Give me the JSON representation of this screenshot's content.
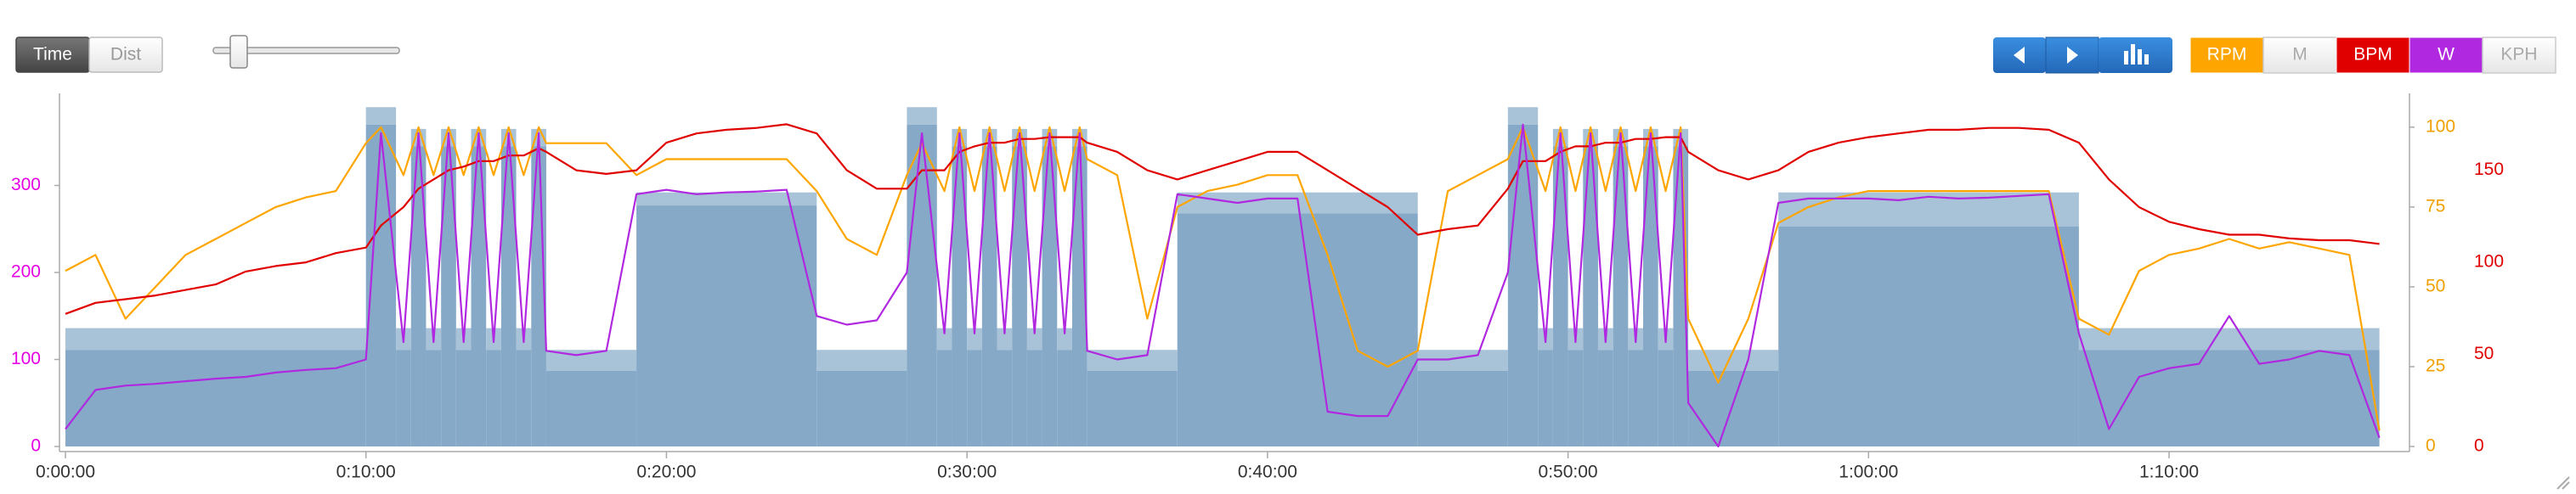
{
  "toolbar": {
    "modes": [
      "Time",
      "Dist"
    ],
    "selected_mode": 0,
    "inactive_toggles": [
      "M",
      "KPH"
    ]
  },
  "chart_data": {
    "type": "line",
    "x": [
      0,
      1,
      2,
      3,
      4,
      5,
      6,
      7,
      8,
      9,
      10,
      10.5,
      11.25,
      11.75,
      12.25,
      12.75,
      13.25,
      13.75,
      14.25,
      14.75,
      15.25,
      15.75,
      16,
      17,
      18,
      19,
      20,
      21,
      22,
      23,
      24,
      25,
      26,
      27,
      28,
      28.5,
      29.25,
      29.75,
      30.25,
      30.75,
      31.25,
      31.75,
      32.25,
      32.75,
      33.25,
      33.75,
      34,
      35,
      36,
      37,
      38,
      39,
      40,
      41,
      42,
      43,
      44,
      45,
      46,
      47,
      48,
      48.5,
      49.25,
      49.75,
      50.25,
      50.75,
      51.25,
      51.75,
      52.25,
      52.75,
      53.25,
      53.75,
      54,
      55,
      56,
      57,
      58,
      59,
      60,
      61,
      62,
      63,
      64,
      65,
      66,
      67,
      68,
      69,
      70,
      71,
      72,
      73,
      74,
      75,
      76,
      77
    ],
    "xlim": [
      0,
      78
    ],
    "xticks": [
      {
        "value": 0,
        "label": "0:00:00"
      },
      {
        "value": 10,
        "label": "0:10:00"
      },
      {
        "value": 20,
        "label": "0:20:00"
      },
      {
        "value": 30,
        "label": "0:30:00"
      },
      {
        "value": 40,
        "label": "0:40:00"
      },
      {
        "value": 50,
        "label": "0:50:00"
      },
      {
        "value": 60,
        "label": "1:00:00"
      },
      {
        "value": 70,
        "label": "1:10:00"
      }
    ],
    "ylim": [
      0,
      400
    ],
    "yticks": [
      0,
      100,
      200,
      300
    ],
    "y_color": "#e600e6",
    "y2lim": [
      0,
      109
    ],
    "y2ticks": [
      0,
      25,
      50,
      75,
      100
    ],
    "y2_color": "#f0a000",
    "y3lim": [
      0,
      189
    ],
    "y3ticks": [
      0,
      50,
      100,
      150
    ],
    "y3_color": "#e00000",
    "series": [
      {
        "name": "RPM",
        "color": "#ffa500",
        "axis": "y2",
        "values": [
          55,
          60,
          40,
          50,
          60,
          65,
          70,
          75,
          78,
          80,
          95,
          100,
          85,
          100,
          85,
          100,
          85,
          100,
          85,
          100,
          85,
          100,
          95,
          95,
          95,
          85,
          90,
          90,
          90,
          90,
          90,
          80,
          65,
          60,
          85,
          95,
          80,
          100,
          80,
          100,
          80,
          100,
          80,
          100,
          80,
          100,
          90,
          85,
          40,
          75,
          80,
          82,
          85,
          85,
          60,
          30,
          25,
          30,
          80,
          85,
          90,
          100,
          80,
          100,
          80,
          100,
          80,
          100,
          80,
          100,
          80,
          100,
          40,
          20,
          40,
          70,
          75,
          78,
          80,
          80,
          80,
          80,
          80,
          80,
          80,
          40,
          35,
          55,
          60,
          62,
          65,
          62,
          64,
          62,
          60,
          5
        ]
      },
      {
        "name": "BPM",
        "color": "#e00000",
        "axis": "y3",
        "values": [
          72,
          78,
          80,
          82,
          85,
          88,
          95,
          98,
          100,
          105,
          108,
          120,
          130,
          140,
          145,
          150,
          152,
          155,
          155,
          158,
          158,
          162,
          160,
          150,
          148,
          150,
          165,
          170,
          172,
          173,
          175,
          170,
          150,
          140,
          140,
          150,
          150,
          160,
          163,
          165,
          165,
          167,
          167,
          168,
          168,
          168,
          165,
          160,
          150,
          145,
          150,
          155,
          160,
          160,
          150,
          140,
          130,
          115,
          118,
          120,
          140,
          155,
          155,
          160,
          163,
          163,
          165,
          165,
          167,
          167,
          168,
          168,
          160,
          150,
          145,
          150,
          160,
          165,
          168,
          170,
          172,
          172,
          173,
          173,
          172,
          165,
          145,
          130,
          122,
          118,
          115,
          115,
          113,
          112,
          112,
          110
        ]
      },
      {
        "name": "W",
        "color": "#b028e0",
        "axis": "y",
        "values": [
          20,
          65,
          70,
          72,
          75,
          78,
          80,
          85,
          88,
          90,
          100,
          360,
          120,
          360,
          120,
          360,
          120,
          360,
          120,
          360,
          120,
          360,
          110,
          105,
          110,
          290,
          295,
          290,
          292,
          293,
          295,
          150,
          140,
          145,
          200,
          360,
          130,
          360,
          130,
          360,
          130,
          360,
          130,
          360,
          130,
          360,
          110,
          100,
          105,
          290,
          285,
          280,
          285,
          285,
          40,
          35,
          35,
          100,
          100,
          105,
          200,
          370,
          120,
          360,
          120,
          360,
          120,
          360,
          120,
          360,
          120,
          360,
          50,
          0,
          100,
          280,
          285,
          285,
          285,
          283,
          287,
          285,
          286,
          288,
          290,
          130,
          20,
          80,
          90,
          95,
          150,
          95,
          100,
          110,
          105,
          10
        ]
      }
    ],
    "intervals": {
      "color": "#86a9c8",
      "range_color": "#a8c2d8",
      "starts": [
        0,
        10,
        11,
        11.5,
        12,
        12.5,
        13,
        13.5,
        14,
        14.5,
        15,
        15.5,
        16,
        19,
        25,
        28,
        29,
        29.5,
        30,
        30.5,
        31,
        31.5,
        32,
        32.5,
        33,
        33.5,
        34,
        37,
        45,
        48,
        49,
        49.5,
        50,
        50.5,
        51,
        51.5,
        52,
        52.5,
        53,
        53.5,
        54,
        57,
        67
      ],
      "ends": [
        10,
        11,
        11.5,
        12,
        12.5,
        13,
        13.5,
        14,
        14.5,
        15,
        15.5,
        16,
        19,
        25,
        28,
        29,
        29.5,
        30,
        30.5,
        31,
        31.5,
        32,
        32.5,
        33,
        33.5,
        34,
        37,
        45,
        48,
        49,
        49.5,
        50,
        50.5,
        51,
        51.5,
        52,
        52.5,
        53,
        53.5,
        54,
        57,
        67,
        77
      ],
      "low": [
        111,
        370,
        111,
        345,
        111,
        345,
        111,
        345,
        111,
        345,
        111,
        345,
        87,
        277,
        87,
        370,
        111,
        345,
        111,
        345,
        111,
        345,
        111,
        345,
        111,
        345,
        87,
        268,
        87,
        370,
        111,
        345,
        111,
        345,
        111,
        345,
        111,
        345,
        111,
        345,
        87,
        253,
        111
      ],
      "high": [
        136,
        390,
        136,
        365,
        136,
        365,
        136,
        365,
        136,
        365,
        136,
        365,
        111,
        292,
        111,
        390,
        136,
        365,
        136,
        365,
        136,
        365,
        136,
        365,
        136,
        365,
        111,
        292,
        111,
        390,
        136,
        365,
        136,
        365,
        136,
        365,
        136,
        365,
        136,
        365,
        111,
        292,
        136
      ]
    }
  }
}
